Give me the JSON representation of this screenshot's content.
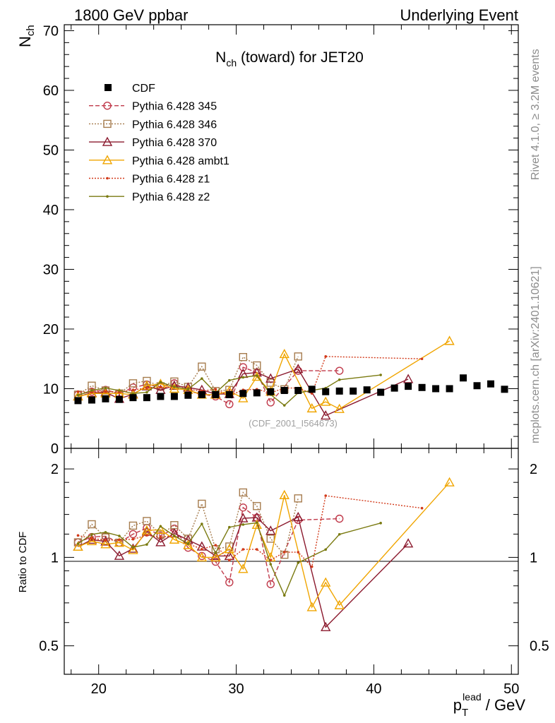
{
  "header": {
    "left": "1800 GeV ppbar",
    "right": "Underlying Event"
  },
  "side_labels": {
    "generator": "Rivet 4.1.0, ≥ 3.2M events",
    "site": "mcplots.cern.ch [arXiv:2401.10621]"
  },
  "watermark": "(CDF_2001_I564673)",
  "chart_data": [
    {
      "panel": "main",
      "type": "scatter",
      "title": "N_ch (toward) for JET20",
      "title_main": "N",
      "title_sub": "ch",
      "title_rest": " (toward) for JET20",
      "ylabel": "N_ch",
      "ylabel_main": "N",
      "ylabel_sub": "ch",
      "xlim": [
        17.5,
        50.5
      ],
      "ylim": [
        0,
        71
      ],
      "yticks": [
        0,
        10,
        20,
        30,
        40,
        50,
        60,
        70
      ],
      "ytick_labels": [
        "0",
        "10",
        "20",
        "30",
        "40",
        "50",
        "60",
        "70"
      ],
      "legend_position": "top-left",
      "series": [
        {
          "name": "CDF",
          "color": "#000000",
          "style": "data",
          "x": [
            18.5,
            19.5,
            20.5,
            21.5,
            22.5,
            23.5,
            24.5,
            25.5,
            26.5,
            27.5,
            28.5,
            29.5,
            30.5,
            31.5,
            32.5,
            33.5,
            34.5,
            35.5,
            36.5,
            37.5,
            38.5,
            39.5,
            40.5,
            41.5,
            42.5,
            43.5,
            44.5,
            45.5,
            46.5,
            47.5,
            48.5,
            49.5
          ],
          "y": [
            8.0,
            8.1,
            8.3,
            8.2,
            8.5,
            8.5,
            8.7,
            8.7,
            8.9,
            9.0,
            9.0,
            9.0,
            9.2,
            9.3,
            9.5,
            9.7,
            9.7,
            9.9,
            9.5,
            9.6,
            9.6,
            9.8,
            9.4,
            10.1,
            10.4,
            10.2,
            10.0,
            10.0,
            11.8,
            10.5,
            10.8,
            9.9
          ]
        },
        {
          "name": "Pythia 6.428 345",
          "color": "#c0394a",
          "style": "circle-dashed",
          "x": [
            18.5,
            19.5,
            20.5,
            21.5,
            22.5,
            23.5,
            24.5,
            25.5,
            26.5,
            27.5,
            28.5,
            29.5,
            30.5,
            31.5,
            32.5,
            33.5,
            34.5,
            35.5,
            36.5,
            37.5
          ],
          "y": [
            9.0,
            9.5,
            9.8,
            9.2,
            10.2,
            10.7,
            10.3,
            10.9,
            9.6,
            9.1,
            8.7,
            7.4,
            13.6,
            12.7,
            7.7,
            null,
            13.0,
            null,
            null,
            13.0
          ]
        },
        {
          "name": "Pythia 6.428 346",
          "color": "#a67c4e",
          "style": "square-dotted",
          "x": [
            18.5,
            19.5,
            20.5,
            21.5,
            22.5,
            23.5,
            24.5,
            25.5,
            26.5,
            27.5,
            28.5,
            29.5,
            30.5,
            31.5,
            32.5,
            33.5,
            34.5
          ],
          "y": [
            9.0,
            10.5,
            9.7,
            9.2,
            10.9,
            11.3,
            10.4,
            11.2,
            10.3,
            13.7,
            9.6,
            9.8,
            15.3,
            13.9,
            11.0,
            9.9,
            15.4
          ]
        },
        {
          "name": "Pythia 6.428 370",
          "color": "#8b1a2e",
          "style": "triangle-solid",
          "x": [
            18.5,
            19.5,
            20.5,
            21.5,
            22.5,
            23.5,
            24.5,
            25.5,
            26.5,
            27.5,
            28.5,
            29.5,
            30.5,
            31.5,
            32.5,
            33.5,
            34.5,
            35.5,
            36.5,
            37.5,
            38.5,
            39.5,
            40.5,
            41.5,
            42.5
          ],
          "y": [
            8.7,
            9.3,
            9.4,
            8.3,
            9.1,
            10.4,
            9.8,
            10.5,
            10.2,
            9.8,
            9.1,
            9.1,
            12.5,
            12.7,
            11.7,
            null,
            13.3,
            null,
            5.5,
            null,
            null,
            null,
            null,
            null,
            11.6
          ]
        },
        {
          "name": "Pythia 6.428 ambt1",
          "color": "#f0a500",
          "style": "triangle-solid",
          "x": [
            18.5,
            19.5,
            20.5,
            21.5,
            22.5,
            23.5,
            24.5,
            25.5,
            26.5,
            27.5,
            28.5,
            29.5,
            30.5,
            31.5,
            32.5,
            33.5,
            34.5,
            35.5,
            36.5,
            37.5,
            38.5,
            39.5,
            40.5,
            41.5,
            42.5,
            43.5,
            44.5,
            45.5
          ],
          "y": [
            8.7,
            9.2,
            9.2,
            9.2,
            9.0,
            10.5,
            10.8,
            10.0,
            9.8,
            9.0,
            9.0,
            9.6,
            8.4,
            12.0,
            9.5,
            15.8,
            null,
            6.7,
            7.8,
            6.6,
            null,
            null,
            null,
            null,
            null,
            null,
            null,
            18.0
          ]
        },
        {
          "name": "Pythia 6.428 z1",
          "color": "#d23a1a",
          "style": "dot-dotted",
          "x": [
            18.5,
            19.5,
            20.5,
            21.5,
            22.5,
            23.5,
            24.5,
            25.5,
            26.5,
            27.5,
            28.5,
            29.5,
            30.5,
            31.5,
            32.5,
            33.5,
            34.5,
            35.5,
            36.5,
            37.5,
            38.5,
            39.5,
            40.5,
            41.5,
            42.5,
            43.5
          ],
          "y": [
            9.5,
            9.4,
            9.5,
            9.4,
            9.8,
            10.1,
            10.2,
            10.3,
            9.9,
            9.6,
            9.9,
            8.8,
            9.8,
            9.9,
            9.3,
            10.1,
            10.1,
            9.2,
            15.4,
            null,
            null,
            null,
            null,
            null,
            null,
            15.0
          ]
        },
        {
          "name": "Pythia 6.428 z2",
          "color": "#7a7a10",
          "style": "dot-solid",
          "x": [
            18.5,
            19.5,
            20.5,
            21.5,
            22.5,
            23.5,
            24.5,
            25.5,
            26.5,
            27.5,
            28.5,
            29.5,
            30.5,
            31.5,
            32.5,
            33.5,
            34.5,
            35.5,
            36.5,
            37.5,
            38.5,
            39.5,
            40.5
          ],
          "y": [
            8.9,
            9.7,
            10.1,
            9.7,
            9.2,
            9.4,
            11.1,
            10.3,
            9.9,
            11.7,
            9.3,
            11.4,
            11.9,
            12.2,
            9.0,
            7.2,
            9.3,
            null,
            10.1,
            11.5,
            null,
            null,
            12.3
          ]
        }
      ]
    },
    {
      "panel": "ratio",
      "type": "line",
      "ylabel": "Ratio to CDF",
      "xlabel": "p_T^lead / GeV",
      "xlabel_main": "p",
      "xlabel_sub": "T",
      "xlabel_sup": "lead",
      "xlabel_rest": " / GeV",
      "ylim": [
        0.4,
        2.35
      ],
      "xticks": [
        20,
        30,
        40,
        50
      ],
      "xtick_labels": [
        "20",
        "30",
        "40",
        "50"
      ],
      "yticks": [
        0.5,
        1,
        2
      ],
      "ytick_labels": [
        "0.5",
        "1",
        "2"
      ],
      "reference_line": 1
    }
  ]
}
